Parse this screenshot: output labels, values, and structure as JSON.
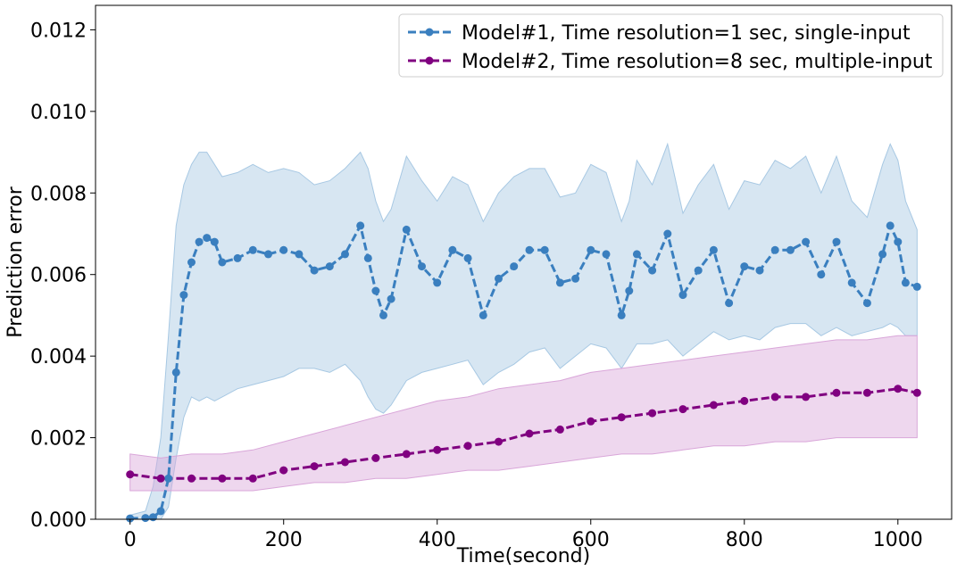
{
  "chart_data": {
    "type": "line",
    "title": "",
    "xlabel": "Time(second)",
    "ylabel": "Prediction error",
    "xlim": [
      -45,
      1070
    ],
    "ylim": [
      0,
      0.0126
    ],
    "xticks": [
      0,
      200,
      400,
      600,
      800,
      1000
    ],
    "xtick_labels": [
      "0",
      "200",
      "400",
      "600",
      "800",
      "1000"
    ],
    "yticks": [
      0,
      0.002,
      0.004,
      0.006,
      0.008,
      0.01,
      0.012
    ],
    "ytick_labels": [
      "0.000",
      "0.002",
      "0.004",
      "0.006",
      "0.008",
      "0.010",
      "0.012"
    ],
    "grid": false,
    "legend_position": "top-right",
    "series": [
      {
        "name": "Model#1, Time resolution=1 sec, single-input",
        "color": "#3a7fbf",
        "band_color": "#a7c8e3",
        "x": [
          0,
          20,
          30,
          40,
          50,
          60,
          70,
          80,
          90,
          100,
          110,
          120,
          140,
          160,
          180,
          200,
          220,
          240,
          260,
          280,
          300,
          310,
          320,
          330,
          340,
          360,
          380,
          400,
          420,
          440,
          460,
          480,
          500,
          520,
          540,
          560,
          580,
          600,
          620,
          640,
          650,
          660,
          680,
          700,
          720,
          740,
          760,
          780,
          800,
          820,
          840,
          860,
          880,
          900,
          920,
          940,
          960,
          980,
          990,
          1000,
          1010,
          1025
        ],
        "values": [
          2e-05,
          3e-05,
          5e-05,
          0.0002,
          0.001,
          0.0036,
          0.0055,
          0.0063,
          0.0068,
          0.0069,
          0.0068,
          0.0063,
          0.0064,
          0.0066,
          0.0065,
          0.0066,
          0.0065,
          0.0061,
          0.0062,
          0.0065,
          0.0072,
          0.0064,
          0.0056,
          0.005,
          0.0054,
          0.0071,
          0.0062,
          0.0058,
          0.0066,
          0.0064,
          0.005,
          0.0059,
          0.0062,
          0.0066,
          0.0066,
          0.0058,
          0.0059,
          0.0066,
          0.0065,
          0.005,
          0.0056,
          0.0065,
          0.0061,
          0.007,
          0.0055,
          0.0061,
          0.0066,
          0.0053,
          0.0062,
          0.0061,
          0.0066,
          0.0066,
          0.0068,
          0.006,
          0.0068,
          0.0058,
          0.0053,
          0.0065,
          0.0072,
          0.0068,
          0.0058,
          0.0057
        ],
        "lower": [
          0.0,
          0.0,
          0.0,
          0.0,
          0.0003,
          0.0015,
          0.0025,
          0.003,
          0.0029,
          0.003,
          0.0029,
          0.003,
          0.0032,
          0.0033,
          0.0034,
          0.0035,
          0.0037,
          0.0037,
          0.0036,
          0.0038,
          0.0034,
          0.003,
          0.0027,
          0.0026,
          0.0028,
          0.0034,
          0.0036,
          0.0037,
          0.0038,
          0.0039,
          0.0033,
          0.0036,
          0.0038,
          0.0041,
          0.0042,
          0.0037,
          0.004,
          0.0043,
          0.0042,
          0.0037,
          0.004,
          0.0043,
          0.0043,
          0.0044,
          0.004,
          0.0043,
          0.0046,
          0.0044,
          0.0045,
          0.0044,
          0.0047,
          0.0048,
          0.0048,
          0.0045,
          0.0047,
          0.0045,
          0.0046,
          0.0047,
          0.0048,
          0.0047,
          0.0045,
          0.0045
        ],
        "upper": [
          0.0001,
          0.0002,
          0.0008,
          0.002,
          0.0045,
          0.0072,
          0.0082,
          0.0087,
          0.009,
          0.009,
          0.0087,
          0.0084,
          0.0085,
          0.0087,
          0.0085,
          0.0086,
          0.0085,
          0.0082,
          0.0083,
          0.0086,
          0.009,
          0.0086,
          0.0078,
          0.0073,
          0.0076,
          0.0089,
          0.0083,
          0.0078,
          0.0084,
          0.0082,
          0.0073,
          0.008,
          0.0084,
          0.0086,
          0.0086,
          0.0079,
          0.008,
          0.0087,
          0.0085,
          0.0073,
          0.0078,
          0.0088,
          0.0082,
          0.0092,
          0.0075,
          0.0082,
          0.0087,
          0.0076,
          0.0083,
          0.0082,
          0.0088,
          0.0086,
          0.0089,
          0.008,
          0.0089,
          0.0078,
          0.0074,
          0.0087,
          0.0092,
          0.0088,
          0.0078,
          0.0071
        ]
      },
      {
        "name": "Model#2, Time resolution=8 sec, multiple-input",
        "color": "#800080",
        "band_color": "#d9a6d9",
        "x": [
          0,
          40,
          80,
          120,
          160,
          200,
          240,
          280,
          320,
          360,
          400,
          440,
          480,
          520,
          560,
          600,
          640,
          680,
          720,
          760,
          800,
          840,
          880,
          920,
          960,
          1000,
          1025
        ],
        "values": [
          0.0011,
          0.001,
          0.001,
          0.001,
          0.001,
          0.0012,
          0.0013,
          0.0014,
          0.0015,
          0.0016,
          0.0017,
          0.0018,
          0.0019,
          0.0021,
          0.0022,
          0.0024,
          0.0025,
          0.0026,
          0.0027,
          0.0028,
          0.0029,
          0.003,
          0.003,
          0.0031,
          0.0031,
          0.0032,
          0.0031
        ],
        "lower": [
          0.0007,
          0.0007,
          0.0007,
          0.0007,
          0.0007,
          0.0008,
          0.0009,
          0.0009,
          0.001,
          0.001,
          0.0011,
          0.0012,
          0.0012,
          0.0013,
          0.0014,
          0.0015,
          0.0016,
          0.0016,
          0.0017,
          0.0018,
          0.0018,
          0.0019,
          0.0019,
          0.002,
          0.002,
          0.002,
          0.002
        ],
        "upper": [
          0.0016,
          0.0015,
          0.0016,
          0.0016,
          0.0017,
          0.0019,
          0.0021,
          0.0023,
          0.0025,
          0.0027,
          0.0029,
          0.003,
          0.0032,
          0.0033,
          0.0034,
          0.0036,
          0.0037,
          0.0038,
          0.0039,
          0.004,
          0.0041,
          0.0042,
          0.0043,
          0.0044,
          0.0044,
          0.0045,
          0.0045
        ]
      }
    ]
  }
}
